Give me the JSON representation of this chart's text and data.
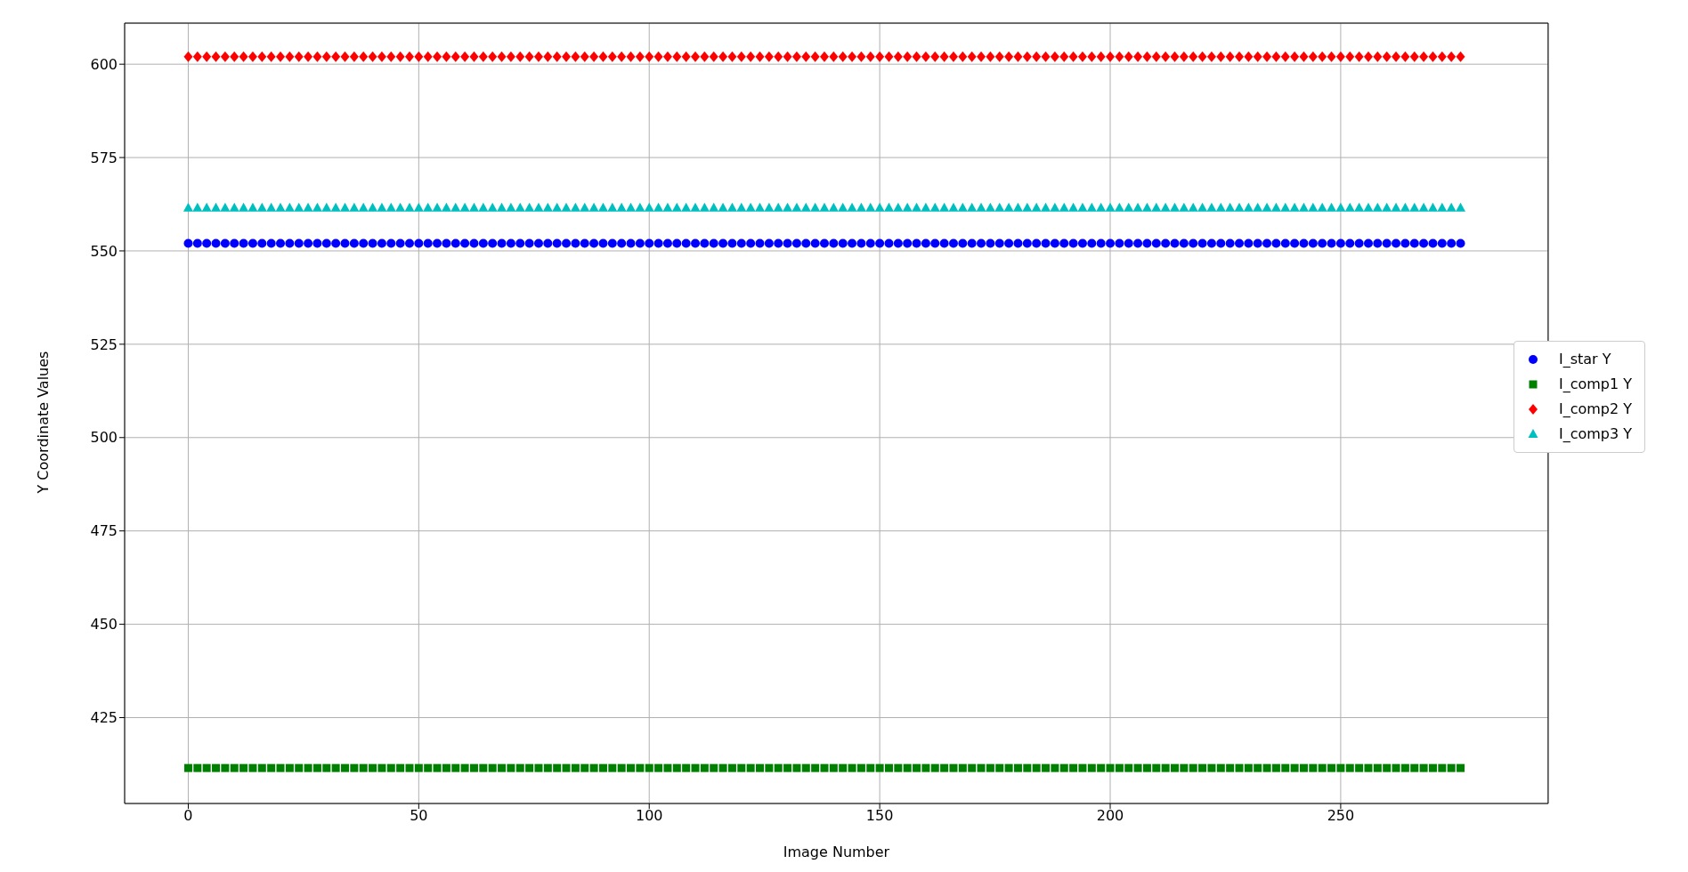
{
  "chart_data": {
    "type": "scatter",
    "xlabel": "Image Number",
    "ylabel": "Y Coordinate Values",
    "x": [
      0,
      2,
      4,
      6,
      8,
      10,
      12,
      14,
      16,
      18,
      20,
      22,
      24,
      26,
      28,
      30,
      32,
      34,
      36,
      38,
      40,
      42,
      44,
      46,
      48,
      50,
      52,
      54,
      56,
      58,
      60,
      62,
      64,
      66,
      68,
      70,
      72,
      74,
      76,
      78,
      80,
      82,
      84,
      86,
      88,
      90,
      92,
      94,
      96,
      98,
      100,
      102,
      104,
      106,
      108,
      110,
      112,
      114,
      116,
      118,
      120,
      122,
      124,
      126,
      128,
      130,
      132,
      134,
      136,
      138,
      140,
      142,
      144,
      146,
      148,
      150,
      152,
      154,
      156,
      158,
      160,
      162,
      164,
      166,
      168,
      170,
      172,
      174,
      176,
      178,
      180,
      182,
      184,
      186,
      188,
      190,
      192,
      194,
      196,
      198,
      200,
      202,
      204,
      206,
      208,
      210,
      212,
      214,
      216,
      218,
      220,
      222,
      224,
      226,
      228,
      230,
      232,
      234,
      236,
      238,
      240,
      242,
      244,
      246,
      248,
      250,
      252,
      254,
      256,
      258,
      260,
      262,
      264,
      266,
      268,
      270,
      272,
      274,
      276
    ],
    "series": [
      {
        "name": "I_star Y",
        "color": "#0000ff",
        "marker": "circle",
        "values": [
          552,
          552,
          552,
          552,
          552,
          552,
          552,
          552,
          552,
          552,
          552,
          552,
          552,
          552,
          552,
          552,
          552,
          552,
          552,
          552,
          552,
          552,
          552,
          552,
          552,
          552,
          552,
          552,
          552,
          552,
          552,
          552,
          552,
          552,
          552,
          552,
          552,
          552,
          552,
          552,
          552,
          552,
          552,
          552,
          552,
          552,
          552,
          552,
          552,
          552,
          552,
          552,
          552,
          552,
          552,
          552,
          552,
          552,
          552,
          552,
          552,
          552,
          552,
          552,
          552,
          552,
          552,
          552,
          552,
          552,
          552,
          552,
          552,
          552,
          552,
          552,
          552,
          552,
          552,
          552,
          552,
          552,
          552,
          552,
          552,
          552,
          552,
          552,
          552,
          552,
          552,
          552,
          552,
          552,
          552,
          552,
          552,
          552,
          552,
          552,
          552,
          552,
          552,
          552,
          552,
          552,
          552,
          552,
          552,
          552,
          552,
          552,
          552,
          552,
          552,
          552,
          552,
          552,
          552,
          552,
          552,
          552,
          552,
          552,
          552,
          552,
          552,
          552,
          552,
          552,
          552,
          552,
          552,
          552,
          552,
          552,
          552,
          552,
          552
        ]
      },
      {
        "name": "I_comp1 Y",
        "color": "#008000",
        "marker": "square",
        "values": [
          411.5,
          411.5,
          411.5,
          411.5,
          411.5,
          411.5,
          411.5,
          411.5,
          411.5,
          411.5,
          411.5,
          411.5,
          411.5,
          411.5,
          411.5,
          411.5,
          411.5,
          411.5,
          411.5,
          411.5,
          411.5,
          411.5,
          411.5,
          411.5,
          411.5,
          411.5,
          411.5,
          411.5,
          411.5,
          411.5,
          411.5,
          411.5,
          411.5,
          411.5,
          411.5,
          411.5,
          411.5,
          411.5,
          411.5,
          411.5,
          411.5,
          411.5,
          411.5,
          411.5,
          411.5,
          411.5,
          411.5,
          411.5,
          411.5,
          411.5,
          411.5,
          411.5,
          411.5,
          411.5,
          411.5,
          411.5,
          411.5,
          411.5,
          411.5,
          411.5,
          411.5,
          411.5,
          411.5,
          411.5,
          411.5,
          411.5,
          411.5,
          411.5,
          411.5,
          411.5,
          411.5,
          411.5,
          411.5,
          411.5,
          411.5,
          411.5,
          411.5,
          411.5,
          411.5,
          411.5,
          411.5,
          411.5,
          411.5,
          411.5,
          411.5,
          411.5,
          411.5,
          411.5,
          411.5,
          411.5,
          411.5,
          411.5,
          411.5,
          411.5,
          411.5,
          411.5,
          411.5,
          411.5,
          411.5,
          411.5,
          411.5,
          411.5,
          411.5,
          411.5,
          411.5,
          411.5,
          411.5,
          411.5,
          411.5,
          411.5,
          411.5,
          411.5,
          411.5,
          411.5,
          411.5,
          411.5,
          411.5,
          411.5,
          411.5,
          411.5,
          411.5,
          411.5,
          411.5,
          411.5,
          411.5,
          411.5,
          411.5,
          411.5,
          411.5,
          411.5,
          411.5,
          411.5,
          411.5,
          411.5,
          411.5,
          411.5,
          411.5,
          411.5,
          411.5
        ]
      },
      {
        "name": "I_comp2 Y",
        "color": "#ff0000",
        "marker": "diamond",
        "values": [
          602,
          602,
          602,
          602,
          602,
          602,
          602,
          602,
          602,
          602,
          602,
          602,
          602,
          602,
          602,
          602,
          602,
          602,
          602,
          602,
          602,
          602,
          602,
          602,
          602,
          602,
          602,
          602,
          602,
          602,
          602,
          602,
          602,
          602,
          602,
          602,
          602,
          602,
          602,
          602,
          602,
          602,
          602,
          602,
          602,
          602,
          602,
          602,
          602,
          602,
          602,
          602,
          602,
          602,
          602,
          602,
          602,
          602,
          602,
          602,
          602,
          602,
          602,
          602,
          602,
          602,
          602,
          602,
          602,
          602,
          602,
          602,
          602,
          602,
          602,
          602,
          602,
          602,
          602,
          602,
          602,
          602,
          602,
          602,
          602,
          602,
          602,
          602,
          602,
          602,
          602,
          602,
          602,
          602,
          602,
          602,
          602,
          602,
          602,
          602,
          602,
          602,
          602,
          602,
          602,
          602,
          602,
          602,
          602,
          602,
          602,
          602,
          602,
          602,
          602,
          602,
          602,
          602,
          602,
          602,
          602,
          602,
          602,
          602,
          602,
          602,
          602,
          602,
          602,
          602,
          602,
          602,
          602,
          602,
          602,
          602,
          602,
          602,
          602
        ]
      },
      {
        "name": "I_comp3 Y",
        "color": "#00bfbf",
        "marker": "triangle",
        "values": [
          561.5,
          561.5,
          561.5,
          561.5,
          561.5,
          561.5,
          561.5,
          561.5,
          561.5,
          561.5,
          561.5,
          561.5,
          561.5,
          561.5,
          561.5,
          561.5,
          561.5,
          561.5,
          561.5,
          561.5,
          561.5,
          561.5,
          561.5,
          561.5,
          561.5,
          561.5,
          561.5,
          561.5,
          561.5,
          561.5,
          561.5,
          561.5,
          561.5,
          561.5,
          561.5,
          561.5,
          561.5,
          561.5,
          561.5,
          561.5,
          561.5,
          561.5,
          561.5,
          561.5,
          561.5,
          561.5,
          561.5,
          561.5,
          561.5,
          561.5,
          561.5,
          561.5,
          561.5,
          561.5,
          561.5,
          561.5,
          561.5,
          561.5,
          561.5,
          561.5,
          561.5,
          561.5,
          561.5,
          561.5,
          561.5,
          561.5,
          561.5,
          561.5,
          561.5,
          561.5,
          561.5,
          561.5,
          561.5,
          561.5,
          561.5,
          561.5,
          561.5,
          561.5,
          561.5,
          561.5,
          561.5,
          561.5,
          561.5,
          561.5,
          561.5,
          561.5,
          561.5,
          561.5,
          561.5,
          561.5,
          561.5,
          561.5,
          561.5,
          561.5,
          561.5,
          561.5,
          561.5,
          561.5,
          561.5,
          561.5,
          561.5,
          561.5,
          561.5,
          561.5,
          561.5,
          561.5,
          561.5,
          561.5,
          561.5,
          561.5,
          561.5,
          561.5,
          561.5,
          561.5,
          561.5,
          561.5,
          561.5,
          561.5,
          561.5,
          561.5,
          561.5,
          561.5,
          561.5,
          561.5,
          561.5,
          561.5,
          561.5,
          561.5,
          561.5,
          561.5,
          561.5,
          561.5,
          561.5,
          561.5,
          561.5,
          561.5,
          561.5,
          561.5,
          561.5
        ]
      }
    ],
    "xlim": [
      -13.8,
      295
    ],
    "xticks": [
      0,
      50,
      100,
      150,
      200,
      250
    ],
    "ylim": [
      402,
      611
    ],
    "yticks": [
      425,
      450,
      475,
      500,
      525,
      550,
      575,
      600
    ],
    "grid": true,
    "legend": "right"
  }
}
